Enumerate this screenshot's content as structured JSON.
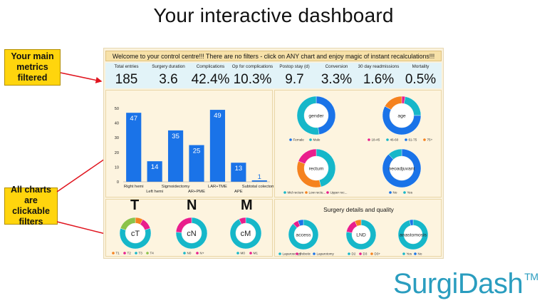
{
  "slide": {
    "title": "Your interactive dashboard",
    "callout_metrics": "Your main metrics filtered",
    "callout_charts": "All charts are clickable filters",
    "logo_text": "SurgiDash",
    "logo_tm": "TM",
    "logo_color": "#2a9dbf",
    "callout_color": "#ffd50d"
  },
  "dashboard": {
    "welcome": "Welcome to your control centre!!! There are no filters - click on ANY chart and enjoy magic of instant recalculations!!!",
    "metrics": [
      {
        "label": "Total entries",
        "value": "185"
      },
      {
        "label": "Surgery duration",
        "value": "3.6"
      },
      {
        "label": "Complications",
        "value": "42.4%"
      },
      {
        "label": "Op for complications",
        "value": "10.3%"
      },
      {
        "label": "Postop stay (d)",
        "value": "9.7"
      },
      {
        "label": "Conversion",
        "value": "3.3%"
      },
      {
        "label": "30 day readmissions",
        "value": "1.6%"
      },
      {
        "label": "Mortality",
        "value": "0.5%"
      }
    ],
    "surgery_title": "Surgery details and quality",
    "tnm_letters": [
      "T",
      "N",
      "M"
    ]
  },
  "chart_data": [
    {
      "type": "bar",
      "categories": [
        "Right hemi",
        "Left hemi",
        "Sigmoidectomy",
        "AR+PME",
        "LAR+TME",
        "APE",
        "Subtotal colectomy"
      ],
      "values": [
        47,
        14,
        35,
        25,
        49,
        13,
        1
      ],
      "ylim": [
        0,
        50
      ],
      "yticks": [
        0,
        10,
        20,
        30,
        40,
        50
      ],
      "color": "#1a73e8"
    },
    {
      "type": "pie",
      "center": "gender",
      "labels": [
        "Female",
        "Male"
      ],
      "values": [
        47.6,
        52.4
      ],
      "colors": [
        "#1a73e8",
        "#16b7c9"
      ]
    },
    {
      "type": "pie",
      "center": "age",
      "labels": [
        "18-45",
        "46-60",
        "61-75",
        "75+"
      ],
      "values": [
        3,
        22,
        58,
        17
      ],
      "colors": [
        "#e91e8c",
        "#16b7c9",
        "#1a73e8",
        "#f5821f"
      ]
    },
    {
      "type": "pie",
      "center": "rectum",
      "labels": [
        "Mid rectum",
        "Low rectu...",
        "Upper rec..."
      ],
      "values": [
        46,
        35,
        19
      ],
      "colors": [
        "#16b7c9",
        "#f5821f",
        "#e91e8c"
      ]
    },
    {
      "type": "pie",
      "center": "neoadjuvant",
      "labels": [
        "No",
        "Yes"
      ],
      "values": [
        88,
        12
      ],
      "colors": [
        "#1a73e8",
        "#16b7c9"
      ]
    },
    {
      "type": "pie",
      "center": "cT",
      "labels": [
        "T1",
        "T2",
        "T3",
        "T4"
      ],
      "values": [
        8,
        12,
        60,
        20
      ],
      "colors": [
        "#f5821f",
        "#e91e8c",
        "#16b7c9",
        "#8bc34a"
      ]
    },
    {
      "type": "pie",
      "center": "cN",
      "labels": [
        "N0",
        "N+"
      ],
      "values": [
        76,
        24
      ],
      "colors": [
        "#16b7c9",
        "#e91e8c"
      ]
    },
    {
      "type": "pie",
      "center": "cM",
      "labels": [
        "M0",
        "M1"
      ],
      "values": [
        93,
        7
      ],
      "colors": [
        "#16b7c9",
        "#e91e8c"
      ]
    },
    {
      "type": "pie",
      "center": "access",
      "labels": [
        "Laparoscopy",
        "Robotic",
        "Laparotomy"
      ],
      "values": [
        88,
        6,
        6
      ],
      "colors": [
        "#16b7c9",
        "#e91e8c",
        "#1a73e8"
      ]
    },
    {
      "type": "pie",
      "center": "LND",
      "labels": [
        "D2",
        "D3",
        "D3+"
      ],
      "values": [
        78,
        15,
        7
      ],
      "colors": [
        "#16b7c9",
        "#e91e8c",
        "#f5821f"
      ]
    },
    {
      "type": "pie",
      "center": "anastomosis",
      "labels": [
        "Yes",
        "No"
      ],
      "values": [
        96,
        4
      ],
      "colors": [
        "#16b7c9",
        "#1a73e8"
      ]
    }
  ]
}
